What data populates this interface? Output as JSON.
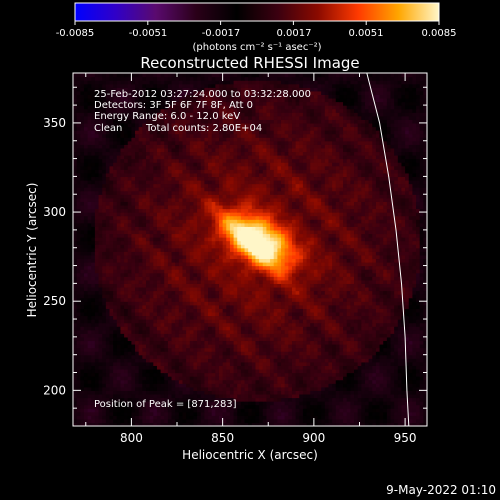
{
  "colorbar": {
    "ticks": [
      "-0.0085",
      "-0.0051",
      "-0.0017",
      "0.0017",
      "0.0051",
      "0.0085"
    ],
    "range": [
      -0.0085,
      0.0085
    ],
    "units": "(photons cm⁻² s⁻¹ asec⁻²)",
    "colormap": [
      "#0000ff",
      "#3000c8",
      "#5a0a6e",
      "#2a0018",
      "#000000",
      "#3a0010",
      "#8a0a00",
      "#ff3a00",
      "#ffa600",
      "#fff6c8"
    ]
  },
  "info": {
    "time_range": "25-Feb-2012 03:27:24.000 to 03:32:28.000",
    "detectors": "Detectors: 3F 5F 6F 7F 8F, Att 0",
    "energy": "Energy Range: 6.0 - 12.0 keV",
    "method": "Clean",
    "counts": "Total counts: 2.80E+04",
    "peak": "Position of Peak = [871,283]"
  },
  "footer": {
    "date": "9-May-2022 01:10"
  },
  "chart_data": {
    "type": "heatmap",
    "title": "Reconstructed RHESSI Image",
    "xlabel": "Heliocentric X (arcsec)",
    "ylabel": "Heliocentric Y (arcsec)",
    "xlim": [
      768,
      962
    ],
    "ylim": [
      180,
      378
    ],
    "x_ticks": [
      800,
      850,
      900,
      950
    ],
    "y_ticks": [
      200,
      250,
      300,
      350
    ],
    "peak": {
      "x": 871,
      "y": 283,
      "value": 0.0085
    },
    "source": {
      "x": 868,
      "y": 283,
      "sigma_major": 15,
      "sigma_minor": 8,
      "angle_deg": -55
    },
    "limb": [
      {
        "x": 929,
        "y": 378
      },
      {
        "x": 936,
        "y": 350
      },
      {
        "x": 941,
        "y": 320
      },
      {
        "x": 945,
        "y": 290
      },
      {
        "x": 948,
        "y": 260
      },
      {
        "x": 950,
        "y": 230
      },
      {
        "x": 951,
        "y": 200
      },
      {
        "x": 952,
        "y": 180
      }
    ],
    "grid": false,
    "legend": "none"
  }
}
